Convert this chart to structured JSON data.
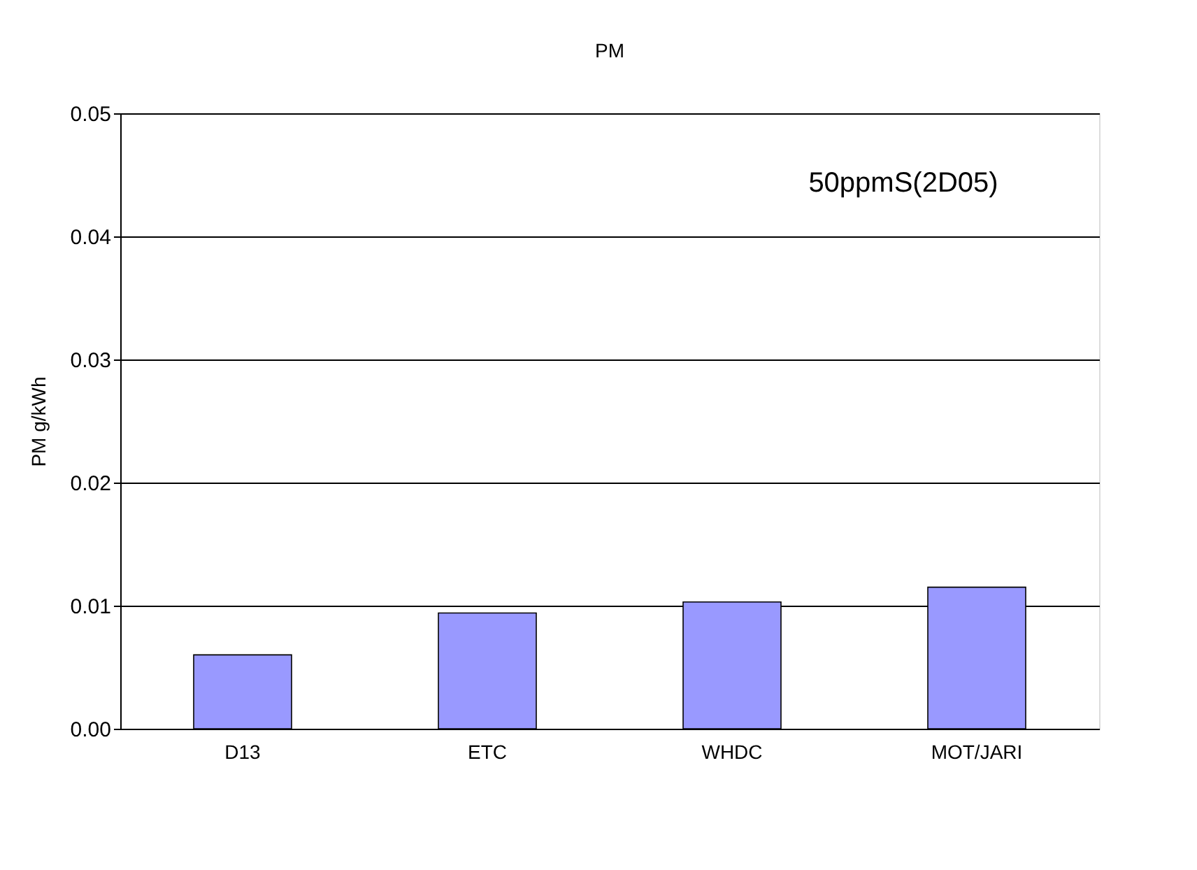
{
  "chart_data": {
    "type": "bar",
    "title": "PM",
    "ylabel": "PM g/kWh",
    "categories": [
      "D13",
      "ETC",
      "WHDC",
      "MOT/JARI"
    ],
    "values": [
      0.006,
      0.0094,
      0.0103,
      0.0115
    ],
    "color": "#9999ff",
    "ylim": [
      0,
      0.05
    ],
    "yticks": [
      {
        "value": 0,
        "label": "0.00"
      },
      {
        "value": 0.01,
        "label": "0.01"
      },
      {
        "value": 0.02,
        "label": "0.02"
      },
      {
        "value": 0.03,
        "label": "0.03"
      },
      {
        "value": 0.04,
        "label": "0.04"
      },
      {
        "value": 0.05,
        "label": "0.05"
      }
    ],
    "grid": "y",
    "annotations": [
      "50ppmS(2D05)"
    ]
  }
}
